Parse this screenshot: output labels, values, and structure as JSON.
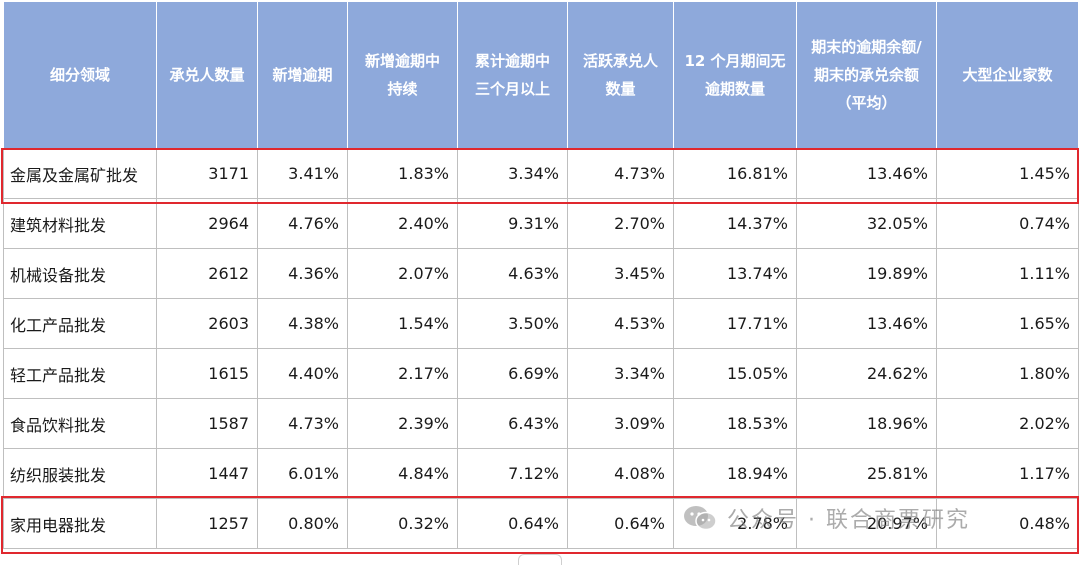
{
  "table": {
    "headers": [
      [
        "细分领域"
      ],
      [
        "承兑人数量"
      ],
      [
        "新增逾期"
      ],
      [
        "新增逾期中",
        "持续"
      ],
      [
        "累计逾期中",
        "三个月以上"
      ],
      [
        "活跃承兑人",
        "数量"
      ],
      [
        "12 个月期间无",
        "逾期数量"
      ],
      [
        "期末的逾期余额/",
        "期末的承兑余额",
        "（平均）"
      ],
      [
        "大型企业家数"
      ]
    ],
    "rows": [
      [
        "金属及金属矿批发",
        "3171",
        "3.41%",
        "1.83%",
        "3.34%",
        "4.73%",
        "16.81%",
        "13.46%",
        "1.45%"
      ],
      [
        "建筑材料批发",
        "2964",
        "4.76%",
        "2.40%",
        "9.31%",
        "2.70%",
        "14.37%",
        "32.05%",
        "0.74%"
      ],
      [
        "机械设备批发",
        "2612",
        "4.36%",
        "2.07%",
        "4.63%",
        "3.45%",
        "13.74%",
        "19.89%",
        "1.11%"
      ],
      [
        "化工产品批发",
        "2603",
        "4.38%",
        "1.54%",
        "3.50%",
        "4.53%",
        "17.71%",
        "13.46%",
        "1.65%"
      ],
      [
        "轻工产品批发",
        "1615",
        "4.40%",
        "2.17%",
        "6.69%",
        "3.34%",
        "15.05%",
        "24.62%",
        "1.80%"
      ],
      [
        "食品饮料批发",
        "1587",
        "4.73%",
        "2.39%",
        "6.43%",
        "3.09%",
        "18.53%",
        "18.96%",
        "2.02%"
      ],
      [
        "纺织服装批发",
        "1447",
        "6.01%",
        "4.84%",
        "7.12%",
        "4.08%",
        "18.94%",
        "25.81%",
        "1.17%"
      ],
      [
        "家用电器批发",
        "1257",
        "0.80%",
        "0.32%",
        "0.64%",
        "0.64%",
        "2.78%",
        "20.97%",
        "0.48%"
      ]
    ],
    "highlighted_rows": [
      0,
      7
    ]
  },
  "watermark": {
    "text": "公众号 · 联合商票研究",
    "icon": "wechat-icon"
  },
  "colors": {
    "header_bg": "#8ea9db",
    "highlight_border": "#e0282e"
  }
}
